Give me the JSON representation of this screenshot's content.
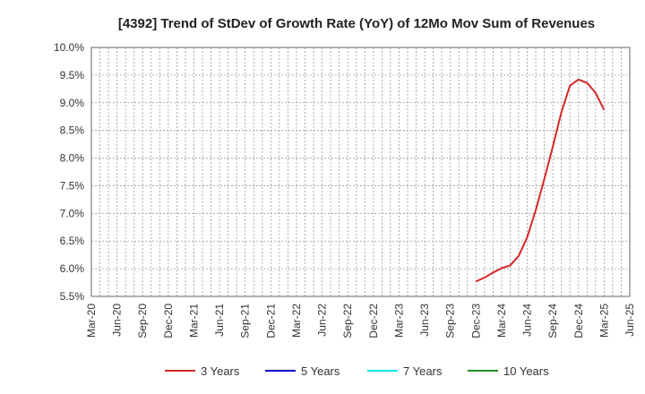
{
  "chart_data": {
    "type": "line",
    "title": "[4392]  Trend of StDev of Growth Rate (YoY) of 12Mo Mov Sum of Revenues",
    "xlabel": "",
    "ylabel": "",
    "ylim": [
      5.5,
      10.0
    ],
    "yticks": [
      "10.0%",
      "9.5%",
      "9.0%",
      "8.5%",
      "8.0%",
      "7.5%",
      "7.0%",
      "6.5%",
      "6.0%",
      "5.5%"
    ],
    "ytick_values": [
      10.0,
      9.5,
      9.0,
      8.5,
      8.0,
      7.5,
      7.0,
      6.5,
      6.0,
      5.5
    ],
    "x_range": [
      "2020-03",
      "2025-06"
    ],
    "xticks": [
      "Mar-20",
      "Jun-20",
      "Sep-20",
      "Dec-20",
      "Mar-21",
      "Jun-21",
      "Sep-21",
      "Dec-21",
      "Mar-22",
      "Jun-22",
      "Sep-22",
      "Dec-22",
      "Mar-23",
      "Jun-23",
      "Sep-23",
      "Dec-23",
      "Mar-24",
      "Jun-24",
      "Sep-24",
      "Dec-24",
      "Mar-25",
      "Jun-25"
    ],
    "grid": true,
    "legend_position": "bottom",
    "series": [
      {
        "name": "3 Years",
        "color": "#d62728",
        "x": [
          "2023-12",
          "2024-01",
          "2024-02",
          "2024-03",
          "2024-04",
          "2024-05",
          "2024-06",
          "2024-07",
          "2024-08",
          "2024-09",
          "2024-10",
          "2024-11",
          "2024-12",
          "2025-01",
          "2025-02",
          "2025-03"
        ],
        "values": [
          5.77,
          5.84,
          5.93,
          6.01,
          6.06,
          6.23,
          6.57,
          7.06,
          7.62,
          8.21,
          8.83,
          9.31,
          9.42,
          9.36,
          9.18,
          8.87
        ]
      },
      {
        "name": "5 Years",
        "color": "#0000cc",
        "x": [],
        "values": []
      },
      {
        "name": "7 Years",
        "color": "#00e5ee",
        "x": [],
        "values": []
      },
      {
        "name": "10 Years",
        "color": "#228b22",
        "x": [],
        "values": []
      }
    ]
  }
}
